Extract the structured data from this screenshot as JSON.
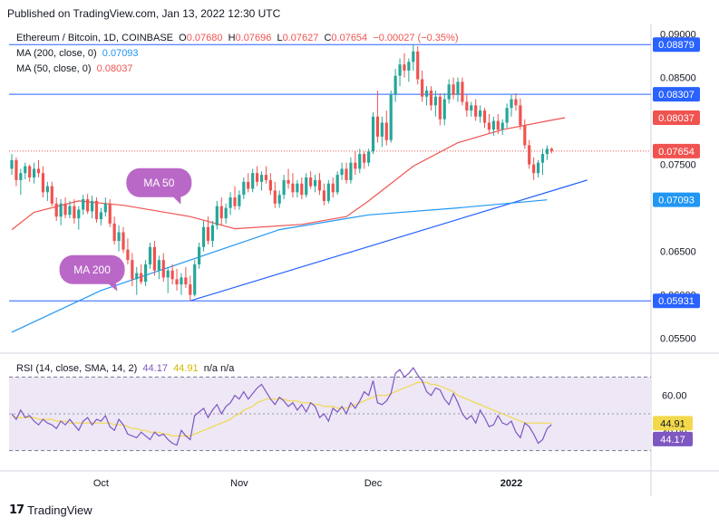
{
  "published": "Published on TradingView.com, Jan 13, 2022 12:30 UTC",
  "legend": {
    "symbol": "Ethereum / Bitcoin, 1D, COINBASE",
    "o_label": "O",
    "o": "0.07680",
    "h_label": "H",
    "h": "0.07696",
    "l_label": "L",
    "l": "0.07627",
    "c_label": "C",
    "c": "0.07654",
    "change": "−0.00027 (−0.35%)",
    "ma200_label": "MA (200, close, 0)",
    "ma200_value": "0.07093",
    "ma50_label": "MA (50, close, 0)",
    "ma50_value": "0.08037",
    "rsi_label": "RSI (14, close, SMA, 14, 2)",
    "rsi_value": "44.17",
    "rsi_sma_value": "44.91",
    "rsi_na": "n/a  n/a"
  },
  "footer": {
    "brand": "TradingView",
    "logo": "17"
  },
  "colors": {
    "up": "#26a69a",
    "down": "#ef5350",
    "ma50": "#ef5350",
    "ma200": "#2196f3",
    "level": "#2962ff",
    "rsi": "#7e57c2",
    "rsi_sma": "#f2d94b",
    "rsi_band": "#ede7f6"
  },
  "chart_data": [
    {
      "type": "candlestick",
      "title": "Ethereum / Bitcoin, 1D, COINBASE",
      "ylim": [
        0.0535,
        0.091
      ],
      "y_ticks": [
        "0.09000",
        "0.08500",
        "0.07500",
        "0.06500",
        "0.06000",
        "0.05500"
      ],
      "x_ticks": [
        {
          "label": "Oct",
          "day": 20
        },
        {
          "label": "Nov",
          "day": 51
        },
        {
          "label": "Dec",
          "day": 81
        },
        {
          "label": "2022",
          "day": 112
        }
      ],
      "price_labels": [
        {
          "value": "0.08879",
          "kind": "level"
        },
        {
          "value": "0.08307",
          "kind": "level"
        },
        {
          "value": "0.08037",
          "kind": "ma50"
        },
        {
          "value": "0.07654",
          "kind": "last"
        },
        {
          "value": "0.07093",
          "kind": "ma200"
        },
        {
          "value": "0.05931",
          "kind": "level"
        }
      ],
      "horizontal_levels": [
        0.08879,
        0.08307,
        0.05931
      ],
      "last_price": 0.07654,
      "trendline": [
        [
          40,
          0.05931
        ],
        [
          129,
          0.0732
        ]
      ],
      "ma200_line": [
        [
          0,
          0.0557
        ],
        [
          20,
          0.0605
        ],
        [
          40,
          0.064
        ],
        [
          60,
          0.0675
        ],
        [
          80,
          0.0692
        ],
        [
          100,
          0.07
        ],
        [
          120,
          0.07093
        ]
      ],
      "ma50_line": [
        [
          0,
          0.0675
        ],
        [
          5,
          0.0695
        ],
        [
          15,
          0.0708
        ],
        [
          25,
          0.0703
        ],
        [
          40,
          0.069
        ],
        [
          50,
          0.0676
        ],
        [
          65,
          0.0681
        ],
        [
          75,
          0.069
        ],
        [
          80,
          0.0708
        ],
        [
          90,
          0.0748
        ],
        [
          100,
          0.0775
        ],
        [
          110,
          0.079
        ],
        [
          120,
          0.08
        ],
        [
          124,
          0.08037
        ]
      ],
      "annotations": [
        {
          "text": "MA 50",
          "day": 33,
          "value": 0.0729
        },
        {
          "text": "MA 200",
          "day": 18,
          "value": 0.0629
        }
      ],
      "candles": [
        [
          0.0745,
          0.0762,
          0.0738,
          0.0755
        ],
        [
          0.0755,
          0.0758,
          0.0725,
          0.0732
        ],
        [
          0.0732,
          0.0745,
          0.0715,
          0.074
        ],
        [
          0.074,
          0.0752,
          0.0733,
          0.0748
        ],
        [
          0.0748,
          0.075,
          0.073,
          0.0735
        ],
        [
          0.0735,
          0.0752,
          0.0728,
          0.0745
        ],
        [
          0.0745,
          0.0755,
          0.0735,
          0.074
        ],
        [
          0.074,
          0.0748,
          0.0712,
          0.0718
        ],
        [
          0.0718,
          0.073,
          0.0708,
          0.0725
        ],
        [
          0.0725,
          0.073,
          0.0702,
          0.0705
        ],
        [
          0.0705,
          0.0712,
          0.0685,
          0.069
        ],
        [
          0.069,
          0.071,
          0.068,
          0.0705
        ],
        [
          0.0705,
          0.0712,
          0.0688,
          0.0692
        ],
        [
          0.0692,
          0.0708,
          0.0688,
          0.0702
        ],
        [
          0.0702,
          0.071,
          0.0682,
          0.0688
        ],
        [
          0.0688,
          0.0702,
          0.0675,
          0.0698
        ],
        [
          0.0698,
          0.0715,
          0.0692,
          0.071
        ],
        [
          0.071,
          0.0716,
          0.0693,
          0.0696
        ],
        [
          0.0696,
          0.0714,
          0.0688,
          0.0708
        ],
        [
          0.0708,
          0.0712,
          0.0683,
          0.0687
        ],
        [
          0.0687,
          0.07,
          0.068,
          0.0695
        ],
        [
          0.0695,
          0.0712,
          0.069,
          0.0705
        ],
        [
          0.0705,
          0.071,
          0.0678,
          0.0682
        ],
        [
          0.0682,
          0.069,
          0.0658,
          0.0662
        ],
        [
          0.0662,
          0.068,
          0.065,
          0.0672
        ],
        [
          0.0672,
          0.0678,
          0.0648,
          0.0652
        ],
        [
          0.0652,
          0.0665,
          0.0635,
          0.064
        ],
        [
          0.064,
          0.0648,
          0.061,
          0.0618
        ],
        [
          0.0618,
          0.0632,
          0.06,
          0.0625
        ],
        [
          0.0625,
          0.0635,
          0.0612,
          0.0615
        ],
        [
          0.0615,
          0.064,
          0.061,
          0.0635
        ],
        [
          0.0635,
          0.066,
          0.063,
          0.0655
        ],
        [
          0.0655,
          0.0662,
          0.0622,
          0.0628
        ],
        [
          0.0628,
          0.0645,
          0.0618,
          0.064
        ],
        [
          0.064,
          0.0648,
          0.0615,
          0.062
        ],
        [
          0.062,
          0.0632,
          0.0602,
          0.0628
        ],
        [
          0.0628,
          0.0635,
          0.0612,
          0.0618
        ],
        [
          0.0618,
          0.063,
          0.0605,
          0.0612
        ],
        [
          0.0612,
          0.0625,
          0.06,
          0.062
        ],
        [
          0.062,
          0.0632,
          0.0608,
          0.0612
        ],
        [
          0.0612,
          0.0622,
          0.0593,
          0.06
        ],
        [
          0.06,
          0.064,
          0.0598,
          0.0635
        ],
        [
          0.0635,
          0.066,
          0.063,
          0.0655
        ],
        [
          0.0655,
          0.0685,
          0.065,
          0.0678
        ],
        [
          0.0678,
          0.069,
          0.0658,
          0.0662
        ],
        [
          0.0662,
          0.0685,
          0.0655,
          0.068
        ],
        [
          0.068,
          0.0708,
          0.0675,
          0.0702
        ],
        [
          0.0702,
          0.0712,
          0.068,
          0.0688
        ],
        [
          0.0688,
          0.0705,
          0.0682,
          0.07
        ],
        [
          0.07,
          0.0718,
          0.0692,
          0.0712
        ],
        [
          0.0712,
          0.0725,
          0.0698,
          0.0702
        ],
        [
          0.0702,
          0.072,
          0.0698,
          0.0715
        ],
        [
          0.0715,
          0.0735,
          0.071,
          0.073
        ],
        [
          0.073,
          0.074,
          0.0718,
          0.0722
        ],
        [
          0.0722,
          0.0745,
          0.0718,
          0.074
        ],
        [
          0.074,
          0.0748,
          0.0725,
          0.073
        ],
        [
          0.073,
          0.0742,
          0.072,
          0.0738
        ],
        [
          0.0738,
          0.0748,
          0.0728,
          0.0732
        ],
        [
          0.0732,
          0.074,
          0.0715,
          0.072
        ],
        [
          0.072,
          0.073,
          0.07,
          0.0705
        ],
        [
          0.0705,
          0.072,
          0.07,
          0.0715
        ],
        [
          0.0715,
          0.0738,
          0.071,
          0.0732
        ],
        [
          0.0732,
          0.0745,
          0.0722,
          0.0728
        ],
        [
          0.0728,
          0.074,
          0.0712,
          0.0718
        ],
        [
          0.0718,
          0.0732,
          0.0712,
          0.0728
        ],
        [
          0.0728,
          0.0735,
          0.071,
          0.0715
        ],
        [
          0.0715,
          0.074,
          0.0712,
          0.0735
        ],
        [
          0.0735,
          0.0742,
          0.0722,
          0.0725
        ],
        [
          0.0725,
          0.0738,
          0.0718,
          0.0732
        ],
        [
          0.0732,
          0.074,
          0.0715,
          0.072
        ],
        [
          0.072,
          0.0728,
          0.0703,
          0.0708
        ],
        [
          0.0708,
          0.0732,
          0.0705,
          0.0728
        ],
        [
          0.0728,
          0.0735,
          0.0712,
          0.0718
        ],
        [
          0.0718,
          0.0742,
          0.0715,
          0.0738
        ],
        [
          0.0738,
          0.0752,
          0.0732,
          0.0745
        ],
        [
          0.0745,
          0.0752,
          0.0728,
          0.0732
        ],
        [
          0.0732,
          0.0758,
          0.0728,
          0.0752
        ],
        [
          0.0752,
          0.0765,
          0.0738,
          0.0745
        ],
        [
          0.0745,
          0.0768,
          0.074,
          0.0762
        ],
        [
          0.0762,
          0.0765,
          0.0745,
          0.0752
        ],
        [
          0.0752,
          0.0768,
          0.0748,
          0.0765
        ],
        [
          0.0765,
          0.081,
          0.0762,
          0.0805
        ],
        [
          0.0805,
          0.0835,
          0.0775,
          0.0782
        ],
        [
          0.0782,
          0.0805,
          0.077,
          0.0798
        ],
        [
          0.0798,
          0.0812,
          0.0772,
          0.0778
        ],
        [
          0.0778,
          0.0835,
          0.0775,
          0.083
        ],
        [
          0.083,
          0.086,
          0.0822,
          0.0852
        ],
        [
          0.0852,
          0.0872,
          0.084,
          0.0865
        ],
        [
          0.0865,
          0.0878,
          0.085,
          0.0858
        ],
        [
          0.0858,
          0.0872,
          0.0845,
          0.0868
        ],
        [
          0.0868,
          0.0888,
          0.0858,
          0.088
        ],
        [
          0.088,
          0.0886,
          0.0842,
          0.0848
        ],
        [
          0.0848,
          0.0858,
          0.0822,
          0.0828
        ],
        [
          0.0828,
          0.084,
          0.0818,
          0.0835
        ],
        [
          0.0835,
          0.084,
          0.0812,
          0.0818
        ],
        [
          0.0818,
          0.0835,
          0.0805,
          0.0828
        ],
        [
          0.0828,
          0.0832,
          0.0795,
          0.0802
        ],
        [
          0.0802,
          0.0832,
          0.0795,
          0.0825
        ],
        [
          0.0825,
          0.0848,
          0.082,
          0.0842
        ],
        [
          0.0842,
          0.085,
          0.0825,
          0.083
        ],
        [
          0.083,
          0.085,
          0.0822,
          0.0845
        ],
        [
          0.0845,
          0.085,
          0.0818,
          0.0822
        ],
        [
          0.0822,
          0.083,
          0.0805,
          0.0812
        ],
        [
          0.0812,
          0.0822,
          0.0805,
          0.0818
        ],
        [
          0.0818,
          0.0825,
          0.08,
          0.0805
        ],
        [
          0.0805,
          0.0818,
          0.0798,
          0.0812
        ],
        [
          0.0812,
          0.0815,
          0.0792,
          0.0798
        ],
        [
          0.0798,
          0.0808,
          0.0785,
          0.079
        ],
        [
          0.079,
          0.0805,
          0.0783,
          0.08
        ],
        [
          0.08,
          0.0808,
          0.0785,
          0.079
        ],
        [
          0.079,
          0.0802,
          0.0784,
          0.0798
        ],
        [
          0.0798,
          0.082,
          0.0792,
          0.0815
        ],
        [
          0.0815,
          0.083,
          0.0805,
          0.0825
        ],
        [
          0.0825,
          0.0832,
          0.0812,
          0.0818
        ],
        [
          0.0818,
          0.0826,
          0.079,
          0.0795
        ],
        [
          0.0795,
          0.0802,
          0.0768,
          0.0772
        ],
        [
          0.0772,
          0.0778,
          0.0745,
          0.075
        ],
        [
          0.075,
          0.0758,
          0.0732,
          0.074
        ],
        [
          0.074,
          0.0755,
          0.0735,
          0.0752
        ],
        [
          0.0752,
          0.0768,
          0.0738,
          0.0762
        ],
        [
          0.0762,
          0.0772,
          0.0755,
          0.0768
        ],
        [
          0.0768,
          0.07696,
          0.07627,
          0.07654
        ]
      ]
    },
    {
      "type": "line",
      "title": "RSI (14, close, SMA, 14, 2)",
      "ylim": [
        20,
        80
      ],
      "y_ticks": [
        "60.00",
        "40.00"
      ],
      "band": [
        30,
        70
      ],
      "price_labels": [
        {
          "value": "44.91",
          "kind": "sma"
        },
        {
          "value": "44.17",
          "kind": "rsi"
        }
      ],
      "series": [
        {
          "values": [
            50,
            47,
            52,
            48,
            49,
            46,
            44,
            47,
            45,
            44,
            42,
            46,
            44,
            47,
            44,
            41,
            46,
            48,
            44,
            47,
            46,
            49,
            43,
            41,
            47,
            44,
            39,
            38,
            37,
            40,
            38,
            36,
            40,
            38,
            39,
            36,
            34,
            33,
            41,
            38,
            36,
            49,
            51,
            53,
            48,
            52,
            55,
            50,
            54,
            56,
            60,
            58,
            62,
            58,
            61,
            64,
            66,
            62,
            58,
            55,
            59,
            57,
            54,
            56,
            52,
            55,
            51,
            56,
            54,
            48,
            50,
            46,
            53,
            51,
            54,
            50,
            56,
            53,
            57,
            62,
            60,
            68,
            56,
            55,
            57,
            61,
            72,
            74,
            70,
            72,
            75,
            71,
            68,
            62,
            60,
            64,
            63,
            58,
            55,
            61,
            56,
            50,
            47,
            49,
            45,
            52,
            48,
            43,
            44,
            49,
            45,
            44,
            46,
            40,
            37,
            45,
            43,
            39,
            34,
            36,
            42,
            44.17
          ]
        },
        {
          "values": [
            49,
            48,
            48,
            48,
            48,
            48,
            47,
            47,
            47,
            47,
            46,
            46,
            46,
            45,
            45,
            45,
            45,
            45,
            45,
            45,
            45,
            45,
            45,
            44,
            44,
            44,
            43,
            42,
            42,
            41,
            41,
            40,
            40,
            40,
            39,
            39,
            38,
            38,
            38,
            38,
            38,
            39,
            40,
            41,
            42,
            43,
            44,
            45,
            46,
            47,
            49,
            50,
            52,
            53,
            54,
            56,
            57,
            58,
            58,
            58,
            58,
            58,
            57,
            57,
            57,
            56,
            56,
            56,
            55,
            55,
            54,
            54,
            54,
            53,
            53,
            53,
            54,
            55,
            56,
            57,
            58,
            59,
            60,
            60,
            60,
            61,
            62,
            63,
            64,
            65,
            66,
            67,
            67,
            67,
            66,
            66,
            65,
            64,
            63,
            62,
            60,
            59,
            58,
            57,
            56,
            55,
            54,
            53,
            52,
            51,
            50,
            49,
            48,
            47,
            46,
            45,
            45,
            45,
            45,
            45,
            45,
            44.91
          ]
        }
      ]
    }
  ]
}
